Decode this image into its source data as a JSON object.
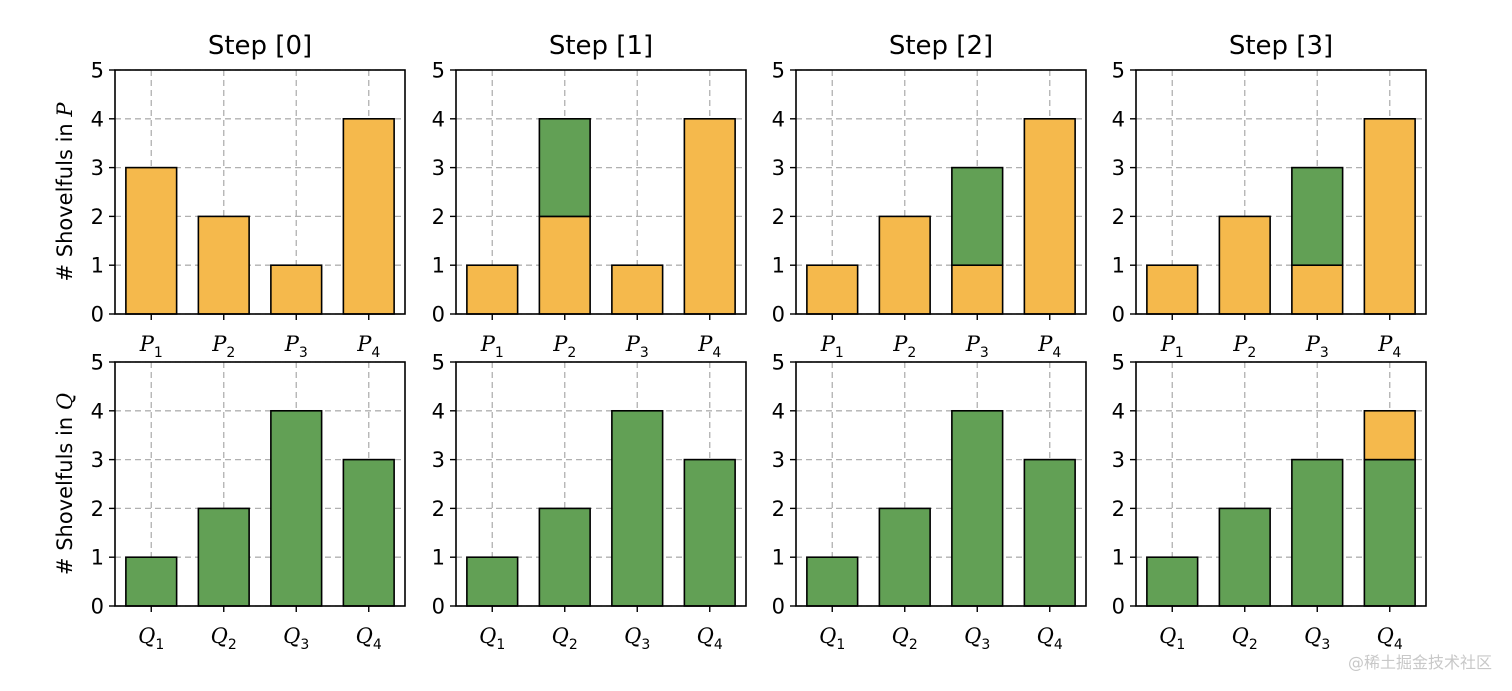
{
  "figure": {
    "watermark": "@稀土掘金技术社区",
    "colors": {
      "orange": "#F5B94C",
      "green": "#62A055",
      "edge": "#000000",
      "grid": "#b0b0b0"
    }
  },
  "chart_data": [
    {
      "type": "bar",
      "stacked": true,
      "title": "Step [0]",
      "ylabel": "# Shovelfuls in P",
      "ylabel_text": "# Shovelfuls in ",
      "ylabel_var": "P",
      "cat_base": "P",
      "categories": [
        "P1",
        "P2",
        "P3",
        "P4"
      ],
      "cat_subs": [
        "1",
        "2",
        "3",
        "4"
      ],
      "ylim": [
        0,
        5
      ],
      "yticks": [
        0,
        1,
        2,
        3,
        4,
        5
      ],
      "ytick_labels": [
        "0",
        "1",
        "2",
        "3",
        "4",
        "5"
      ],
      "grid": true,
      "series": [
        {
          "name": "orange",
          "color": "#F5B94C",
          "values": [
            3,
            2,
            1,
            4
          ]
        },
        {
          "name": "green",
          "color": "#62A055",
          "values": [
            0,
            0,
            0,
            0
          ]
        }
      ]
    },
    {
      "type": "bar",
      "stacked": true,
      "title": "Step [1]",
      "ylabel": "",
      "cat_base": "P",
      "categories": [
        "P1",
        "P2",
        "P3",
        "P4"
      ],
      "cat_subs": [
        "1",
        "2",
        "3",
        "4"
      ],
      "ylim": [
        0,
        5
      ],
      "yticks": [
        0,
        1,
        2,
        3,
        4,
        5
      ],
      "ytick_labels": [
        "0",
        "1",
        "2",
        "3",
        "4",
        "5"
      ],
      "grid": true,
      "series": [
        {
          "name": "orange",
          "color": "#F5B94C",
          "values": [
            1,
            2,
            1,
            4
          ]
        },
        {
          "name": "green",
          "color": "#62A055",
          "values": [
            0,
            2,
            0,
            0
          ]
        }
      ]
    },
    {
      "type": "bar",
      "stacked": true,
      "title": "Step [2]",
      "ylabel": "",
      "cat_base": "P",
      "categories": [
        "P1",
        "P2",
        "P3",
        "P4"
      ],
      "cat_subs": [
        "1",
        "2",
        "3",
        "4"
      ],
      "ylim": [
        0,
        5
      ],
      "yticks": [
        0,
        1,
        2,
        3,
        4,
        5
      ],
      "ytick_labels": [
        "0",
        "1",
        "2",
        "3",
        "4",
        "5"
      ],
      "grid": true,
      "series": [
        {
          "name": "orange",
          "color": "#F5B94C",
          "values": [
            1,
            2,
            1,
            4
          ]
        },
        {
          "name": "green",
          "color": "#62A055",
          "values": [
            0,
            0,
            2,
            0
          ]
        }
      ]
    },
    {
      "type": "bar",
      "stacked": true,
      "title": "Step [3]",
      "ylabel": "",
      "cat_base": "P",
      "categories": [
        "P1",
        "P2",
        "P3",
        "P4"
      ],
      "cat_subs": [
        "1",
        "2",
        "3",
        "4"
      ],
      "ylim": [
        0,
        5
      ],
      "yticks": [
        0,
        1,
        2,
        3,
        4,
        5
      ],
      "ytick_labels": [
        "0",
        "1",
        "2",
        "3",
        "4",
        "5"
      ],
      "grid": true,
      "series": [
        {
          "name": "orange",
          "color": "#F5B94C",
          "values": [
            1,
            2,
            1,
            4
          ]
        },
        {
          "name": "green",
          "color": "#62A055",
          "values": [
            0,
            0,
            2,
            0
          ]
        }
      ]
    },
    {
      "type": "bar",
      "stacked": true,
      "title": "",
      "ylabel": "# Shovelfuls in Q",
      "ylabel_text": "# Shovelfuls in ",
      "ylabel_var": "Q",
      "cat_base": "Q",
      "categories": [
        "Q1",
        "Q2",
        "Q3",
        "Q4"
      ],
      "cat_subs": [
        "1",
        "2",
        "3",
        "4"
      ],
      "ylim": [
        0,
        5
      ],
      "yticks": [
        0,
        1,
        2,
        3,
        4,
        5
      ],
      "ytick_labels": [
        "0",
        "1",
        "2",
        "3",
        "4",
        "5"
      ],
      "grid": true,
      "series": [
        {
          "name": "green",
          "color": "#62A055",
          "values": [
            1,
            2,
            4,
            3
          ]
        },
        {
          "name": "orange",
          "color": "#F5B94C",
          "values": [
            0,
            0,
            0,
            0
          ]
        }
      ]
    },
    {
      "type": "bar",
      "stacked": true,
      "title": "",
      "ylabel": "",
      "cat_base": "Q",
      "categories": [
        "Q1",
        "Q2",
        "Q3",
        "Q4"
      ],
      "cat_subs": [
        "1",
        "2",
        "3",
        "4"
      ],
      "ylim": [
        0,
        5
      ],
      "yticks": [
        0,
        1,
        2,
        3,
        4,
        5
      ],
      "ytick_labels": [
        "0",
        "1",
        "2",
        "3",
        "4",
        "5"
      ],
      "grid": true,
      "series": [
        {
          "name": "green",
          "color": "#62A055",
          "values": [
            1,
            2,
            4,
            3
          ]
        },
        {
          "name": "orange",
          "color": "#F5B94C",
          "values": [
            0,
            0,
            0,
            0
          ]
        }
      ]
    },
    {
      "type": "bar",
      "stacked": true,
      "title": "",
      "ylabel": "",
      "cat_base": "Q",
      "categories": [
        "Q1",
        "Q2",
        "Q3",
        "Q4"
      ],
      "cat_subs": [
        "1",
        "2",
        "3",
        "4"
      ],
      "ylim": [
        0,
        5
      ],
      "yticks": [
        0,
        1,
        2,
        3,
        4,
        5
      ],
      "ytick_labels": [
        "0",
        "1",
        "2",
        "3",
        "4",
        "5"
      ],
      "grid": true,
      "series": [
        {
          "name": "green",
          "color": "#62A055",
          "values": [
            1,
            2,
            4,
            3
          ]
        },
        {
          "name": "orange",
          "color": "#F5B94C",
          "values": [
            0,
            0,
            0,
            0
          ]
        }
      ]
    },
    {
      "type": "bar",
      "stacked": true,
      "title": "",
      "ylabel": "",
      "cat_base": "Q",
      "categories": [
        "Q1",
        "Q2",
        "Q3",
        "Q4"
      ],
      "cat_subs": [
        "1",
        "2",
        "3",
        "4"
      ],
      "ylim": [
        0,
        5
      ],
      "yticks": [
        0,
        1,
        2,
        3,
        4,
        5
      ],
      "ytick_labels": [
        "0",
        "1",
        "2",
        "3",
        "4",
        "5"
      ],
      "grid": true,
      "series": [
        {
          "name": "green",
          "color": "#62A055",
          "values": [
            1,
            2,
            3,
            3
          ]
        },
        {
          "name": "orange",
          "color": "#F5B94C",
          "values": [
            0,
            0,
            0,
            1
          ]
        }
      ]
    }
  ]
}
